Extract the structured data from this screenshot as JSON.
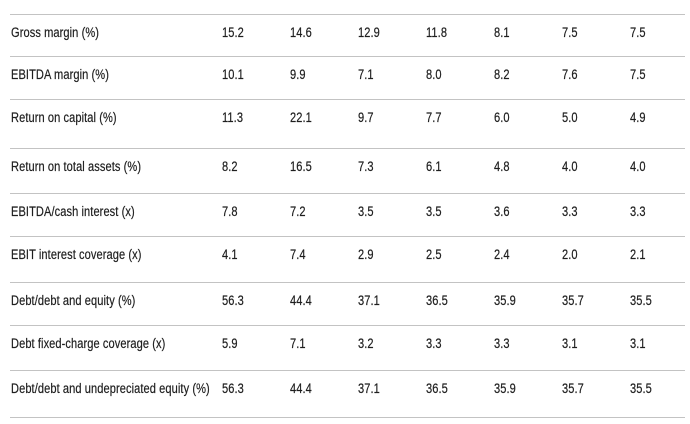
{
  "table": {
    "rows": [
      {
        "label": "Gross margin (%)",
        "values": [
          "15.2",
          "14.6",
          "12.9",
          "11.8",
          "8.1",
          "7.5",
          "7.5"
        ]
      },
      {
        "label": "EBITDA margin (%)",
        "values": [
          "10.1",
          "9.9",
          "7.1",
          "8.0",
          "8.2",
          "7.6",
          "7.5"
        ]
      },
      {
        "label": "Return on capital (%)",
        "values": [
          "11.3",
          "22.1",
          "9.7",
          "7.7",
          "6.0",
          "5.0",
          "4.9"
        ]
      },
      {
        "label": "Return on total assets (%)",
        "values": [
          "8.2",
          "16.5",
          "7.3",
          "6.1",
          "4.8",
          "4.0",
          "4.0"
        ]
      },
      {
        "label": "EBITDA/cash interest (x)",
        "values": [
          "7.8",
          "7.2",
          "3.5",
          "3.5",
          "3.6",
          "3.3",
          "3.3"
        ]
      },
      {
        "label": "EBIT interest coverage (x)",
        "values": [
          "4.1",
          "7.4",
          "2.9",
          "2.5",
          "2.4",
          "2.0",
          "2.1"
        ]
      },
      {
        "label": "Debt/debt and equity (%)",
        "values": [
          "56.3",
          "44.4",
          "37.1",
          "36.5",
          "35.9",
          "35.7",
          "35.5"
        ]
      },
      {
        "label": "Debt fixed-charge coverage (x)",
        "values": [
          "5.9",
          "7.1",
          "3.2",
          "3.3",
          "3.3",
          "3.1",
          "3.1"
        ]
      },
      {
        "label": "Debt/debt and undepreciated equity (%)",
        "values": [
          "56.3",
          "44.4",
          "37.1",
          "36.5",
          "35.9",
          "35.7",
          "35.5"
        ]
      }
    ]
  },
  "colors": {
    "text": "#1e1e1e",
    "divider": "#c3c3c3",
    "background": "#ffffff"
  }
}
